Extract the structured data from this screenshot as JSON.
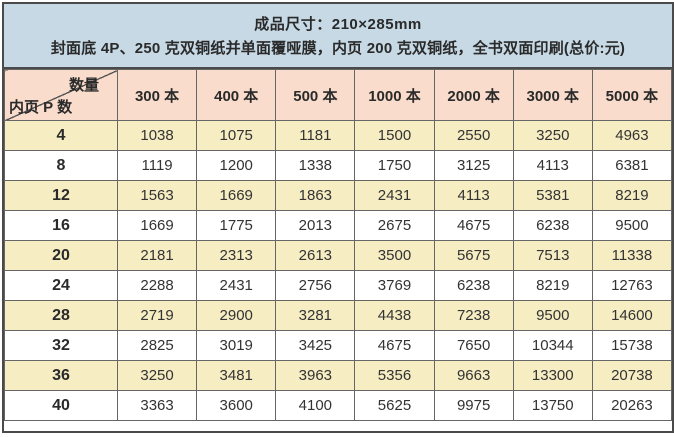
{
  "header": {
    "line1": "成品尺寸：210×285mm",
    "line2": "封面底 4P、250 克双铜纸并单面覆哑膜，内页 200 克双铜纸，全书双面印刷(总价:元)"
  },
  "table": {
    "corner": {
      "top_right_label": "数量",
      "bottom_left_label": "内页 P 数"
    },
    "columns": [
      "300 本",
      "400 本",
      "500 本",
      "1000 本",
      "2000 本",
      "3000 本",
      "5000 本"
    ],
    "rows": [
      {
        "pages": "4",
        "values": [
          "1038",
          "1075",
          "1181",
          "1500",
          "2550",
          "3250",
          "4963"
        ]
      },
      {
        "pages": "8",
        "values": [
          "1119",
          "1200",
          "1338",
          "1750",
          "3125",
          "4113",
          "6381"
        ]
      },
      {
        "pages": "12",
        "values": [
          "1563",
          "1669",
          "1863",
          "2431",
          "4113",
          "5381",
          "8219"
        ]
      },
      {
        "pages": "16",
        "values": [
          "1669",
          "1775",
          "2013",
          "2675",
          "4675",
          "6238",
          "9500"
        ]
      },
      {
        "pages": "20",
        "values": [
          "2181",
          "2313",
          "2613",
          "3500",
          "5675",
          "7513",
          "11338"
        ]
      },
      {
        "pages": "24",
        "values": [
          "2288",
          "2431",
          "2756",
          "3769",
          "6238",
          "8219",
          "12763"
        ]
      },
      {
        "pages": "28",
        "values": [
          "2719",
          "2900",
          "3281",
          "4438",
          "7238",
          "9500",
          "14600"
        ]
      },
      {
        "pages": "32",
        "values": [
          "2825",
          "3019",
          "3425",
          "4675",
          "7650",
          "10344",
          "15738"
        ]
      },
      {
        "pages": "36",
        "values": [
          "3250",
          "3481",
          "3963",
          "5356",
          "9663",
          "13300",
          "20738"
        ]
      },
      {
        "pages": "40",
        "values": [
          "3363",
          "3600",
          "4100",
          "5625",
          "9975",
          "13750",
          "20263"
        ]
      }
    ]
  },
  "colors": {
    "title_band_bg": "#c6d9e5",
    "header_row_bg": "#f9dccb",
    "alt_row_bg": "#f6edc3",
    "outer_border": "#4a4a4a",
    "inner_border": "#666666"
  }
}
